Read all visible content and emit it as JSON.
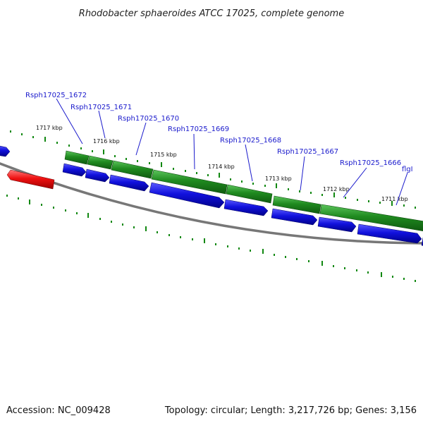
{
  "title": "Rhodobacter sphaeroides ATCC 17025, complete genome",
  "footer": {
    "accession": "Accession: NC_009428",
    "summary": "Topology: circular; Length: 3,217,726 bp; Genes: 3,156"
  },
  "colors": {
    "backbone": "#777777",
    "gene_forward": "#1f8a1f",
    "cds_blue": "#1111dd",
    "cds_red": "#ee1111",
    "tick": "#118811",
    "label_link": "#1a1acc"
  },
  "kbp_ticks": [
    "1717 kbp",
    "1716 kbp",
    "1715 kbp",
    "1714 kbp",
    "1713 kbp",
    "1712 kbp",
    "1711 kbp"
  ],
  "gene_labels": [
    "Rsph17025_1672",
    "Rsph17025_1671",
    "Rsph17025_1670",
    "Rsph17025_1669",
    "Rsph17025_1668",
    "Rsph17025_1667",
    "Rsph17025_1666",
    "flgI"
  ]
}
